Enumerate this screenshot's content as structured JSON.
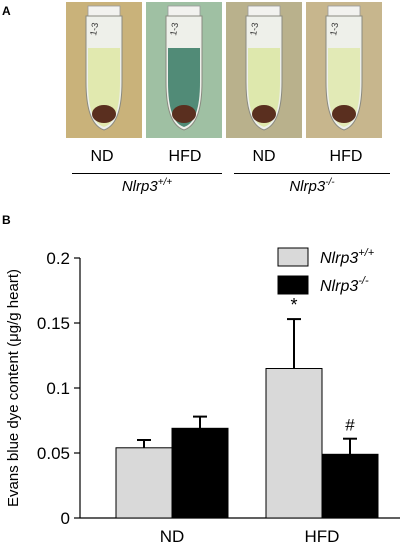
{
  "panel_a": {
    "letter": "A",
    "tube_labels": [
      "1-3",
      "1-3",
      "1-3",
      "1-3"
    ],
    "conditions": [
      "ND",
      "HFD",
      "ND",
      "HFD"
    ],
    "genotypes": [
      {
        "base": "Nlrp3",
        "sup": "+/+"
      },
      {
        "base": "Nlrp3",
        "sup": "-/-"
      }
    ],
    "colors": {
      "tube_bg": [
        "#c9b27a",
        "#9fc0a3",
        "#b9b18c",
        "#c7b68d"
      ],
      "liquid": [
        "#dfe8a8",
        "#3f7f6a",
        "#dce7a6",
        "#e0e9b0"
      ],
      "pellet": "#5a2f1f"
    }
  },
  "chart_data": {
    "panel_letter": "B",
    "type": "bar",
    "ylabel": "Evans blue dye content (μg/g heart)",
    "ylim": [
      0,
      0.2
    ],
    "yticks": [
      0,
      0.05,
      0.1,
      0.15,
      0.2
    ],
    "ytick_labels": [
      "0",
      "0.05",
      "0.1",
      "0.15",
      "0.2"
    ],
    "categories": [
      "ND",
      "HFD"
    ],
    "series": [
      {
        "name": "Nlrp3",
        "name_sup": "+/+",
        "color": "#d9d9d9",
        "values": [
          0.054,
          0.115
        ],
        "errors": [
          0.006,
          0.038
        ]
      },
      {
        "name": "Nlrp3",
        "name_sup": "-/-",
        "color": "#000000",
        "values": [
          0.069,
          0.049
        ],
        "errors": [
          0.009,
          0.012
        ]
      }
    ],
    "annotations": [
      {
        "category": "HFD",
        "series": 0,
        "text": "*"
      },
      {
        "category": "HFD",
        "series": 1,
        "text": "#"
      }
    ],
    "legend_position": "top-right",
    "grid": false
  }
}
